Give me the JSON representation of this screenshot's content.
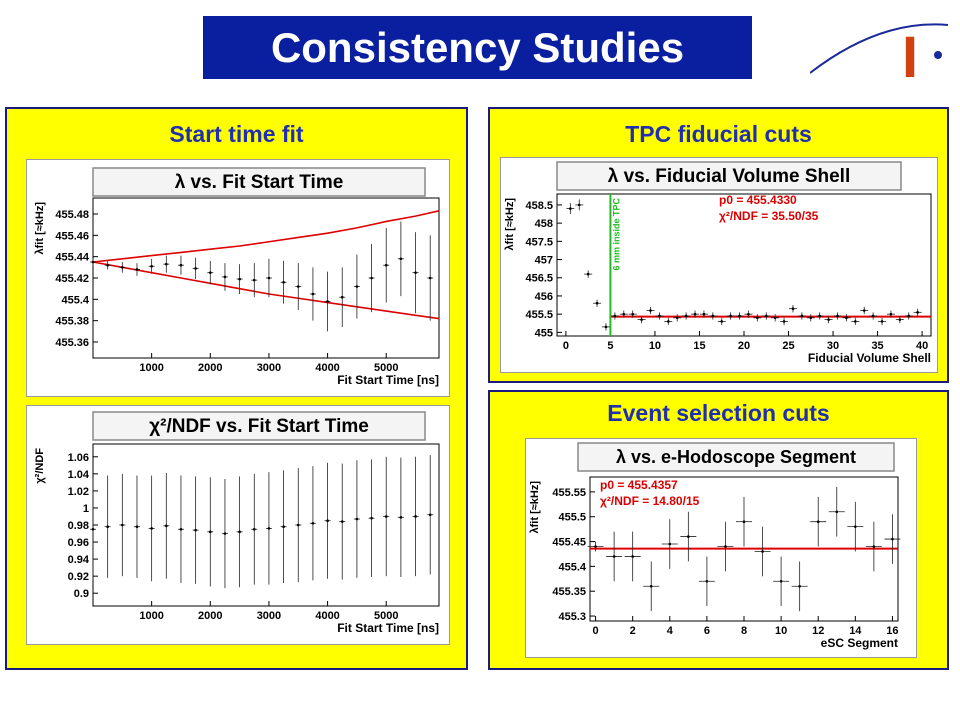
{
  "page": {
    "title": "Consistency Studies",
    "logo_letter": "I",
    "panels": {
      "start_time": "Start time fit",
      "tpc": "TPC fiducial cuts",
      "event": "Event selection cuts"
    }
  },
  "colors": {
    "title_bg": "#0a1fa0",
    "panel_bg": "#ffff00",
    "panel_title": "#1f2fb0",
    "fit_line": "#dd0000",
    "marker_line": "#22bb22"
  },
  "chart_data": [
    {
      "id": "lambda_vs_start",
      "type": "scatter",
      "title": "λ vs. Fit Start Time",
      "xlabel": "Fit Start Time [ns]",
      "ylabel": "λfit [≈kHz]",
      "xlim": [
        0,
        5900
      ],
      "ylim": [
        455.345,
        455.495
      ],
      "xticks": [
        1000,
        2000,
        3000,
        4000,
        5000
      ],
      "yticks": [
        455.36,
        455.38,
        455.4,
        455.42,
        455.44,
        455.46,
        455.48
      ],
      "ytick_labels": [
        "455.36",
        "455.38",
        "455.4",
        "455.42",
        "455.44",
        "455.46",
        "455.48"
      ],
      "series": [
        {
          "x": [
            0,
            250,
            500,
            750,
            1000,
            1250,
            1500,
            1750,
            2000,
            2250,
            2500,
            2750,
            3000,
            3250,
            3500,
            3750,
            4000,
            4250,
            4500,
            4750,
            5000,
            5250,
            5500,
            5750
          ],
          "y": [
            455.435,
            455.432,
            455.43,
            455.428,
            455.431,
            455.433,
            455.432,
            455.429,
            455.425,
            455.421,
            455.419,
            455.418,
            455.42,
            455.416,
            455.412,
            455.405,
            455.398,
            455.402,
            455.412,
            455.42,
            455.432,
            455.438,
            455.425,
            455.42
          ],
          "err_lo": [
            0.003,
            0.004,
            0.005,
            0.006,
            0.007,
            0.008,
            0.009,
            0.01,
            0.011,
            0.013,
            0.014,
            0.016,
            0.018,
            0.02,
            0.022,
            0.025,
            0.028,
            0.028,
            0.03,
            0.032,
            0.035,
            0.035,
            0.038,
            0.04
          ]
        }
      ],
      "envelope": {
        "x": [
          0,
          500,
          1000,
          1500,
          2000,
          2500,
          3000,
          3500,
          4000,
          4500,
          5000,
          5500,
          5900
        ],
        "upper": [
          455.435,
          455.438,
          455.441,
          455.444,
          455.447,
          455.45,
          455.454,
          455.458,
          455.462,
          455.467,
          455.473,
          455.478,
          455.483
        ],
        "lower": [
          455.435,
          455.43,
          455.425,
          455.42,
          455.415,
          455.41,
          455.405,
          455.401,
          455.397,
          455.393,
          455.389,
          455.385,
          455.382
        ]
      }
    },
    {
      "id": "chi2_vs_start",
      "type": "scatter",
      "title": "χ²/NDF vs. Fit Start Time",
      "xlabel": "Fit Start Time [ns]",
      "ylabel": "χ²/NDF",
      "xlim": [
        0,
        5900
      ],
      "ylim": [
        0.885,
        1.075
      ],
      "xticks": [
        1000,
        2000,
        3000,
        4000,
        5000
      ],
      "yticks": [
        0.9,
        0.92,
        0.94,
        0.96,
        0.98,
        1.0,
        1.02,
        1.04,
        1.06
      ],
      "ytick_labels": [
        "0.9",
        "0.92",
        "0.94",
        "0.96",
        "0.98",
        "1",
        "1.02",
        "1.04",
        "1.06"
      ],
      "series": [
        {
          "x": [
            0,
            250,
            500,
            750,
            1000,
            1250,
            1500,
            1750,
            2000,
            2250,
            2500,
            2750,
            3000,
            3250,
            3500,
            3750,
            4000,
            4250,
            4500,
            4750,
            5000,
            5250,
            5500,
            5750
          ],
          "y": [
            0.975,
            0.978,
            0.98,
            0.978,
            0.976,
            0.979,
            0.975,
            0.974,
            0.972,
            0.97,
            0.972,
            0.975,
            0.976,
            0.978,
            0.98,
            0.982,
            0.985,
            0.984,
            0.987,
            0.988,
            0.99,
            0.989,
            0.99,
            0.992
          ],
          "err": [
            0.06,
            0.06,
            0.06,
            0.06,
            0.062,
            0.062,
            0.063,
            0.063,
            0.064,
            0.064,
            0.065,
            0.065,
            0.066,
            0.066,
            0.067,
            0.067,
            0.068,
            0.068,
            0.069,
            0.069,
            0.07,
            0.07,
            0.07,
            0.07
          ]
        }
      ]
    },
    {
      "id": "lambda_vs_shell",
      "type": "scatter",
      "title": "λ vs. Fiducial Volume Shell",
      "xlabel": "Fiducial Volume Shell",
      "ylabel": "λfit [≈kHz]",
      "xlim": [
        -1,
        41
      ],
      "ylim": [
        454.9,
        458.8
      ],
      "xticks": [
        0,
        5,
        10,
        15,
        20,
        25,
        30,
        35,
        40
      ],
      "yticks": [
        455,
        455.5,
        456,
        456.5,
        457,
        457.5,
        458,
        458.5
      ],
      "ytick_labels": [
        "455",
        "455.5",
        "456",
        "456.5",
        "457",
        "457.5",
        "458",
        "458.5"
      ],
      "fit_label": "p0 = 455.4330",
      "chi2_label": "χ²/NDF = 35.50/35",
      "marker_label": "6 mm inside TPC",
      "marker_x": 5,
      "fit_value": 455.433,
      "fit_from": 5,
      "series": [
        {
          "x": [
            0.5,
            1.5,
            2.5,
            3.5,
            4.5,
            5.5,
            6.5,
            7.5,
            8.5,
            9.5,
            10.5,
            11.5,
            12.5,
            13.5,
            14.5,
            15.5,
            16.5,
            17.5,
            18.5,
            19.5,
            20.5,
            21.5,
            22.5,
            23.5,
            24.5,
            25.5,
            26.5,
            27.5,
            28.5,
            29.5,
            30.5,
            31.5,
            32.5,
            33.5,
            34.5,
            35.5,
            36.5,
            37.5,
            38.5,
            39.5
          ],
          "y": [
            458.4,
            458.5,
            456.6,
            455.8,
            455.15,
            455.45,
            455.5,
            455.5,
            455.35,
            455.6,
            455.45,
            455.3,
            455.4,
            455.45,
            455.5,
            455.5,
            455.45,
            455.3,
            455.45,
            455.45,
            455.5,
            455.4,
            455.45,
            455.4,
            455.3,
            455.65,
            455.45,
            455.4,
            455.45,
            455.35,
            455.45,
            455.4,
            455.3,
            455.6,
            455.45,
            455.3,
            455.5,
            455.35,
            455.45,
            455.55
          ],
          "err": [
            0.15,
            0.15,
            0.1,
            0.1,
            0.1,
            0.1,
            0.1,
            0.1,
            0.1,
            0.1,
            0.1,
            0.1,
            0.1,
            0.1,
            0.1,
            0.1,
            0.1,
            0.1,
            0.1,
            0.1,
            0.1,
            0.1,
            0.1,
            0.1,
            0.1,
            0.1,
            0.1,
            0.1,
            0.1,
            0.1,
            0.1,
            0.1,
            0.1,
            0.1,
            0.1,
            0.1,
            0.1,
            0.1,
            0.1,
            0.1
          ]
        }
      ]
    },
    {
      "id": "lambda_vs_segment",
      "type": "scatter",
      "title": "λ vs. e-Hodoscope Segment",
      "xlabel": "eSC Segment",
      "ylabel": "λfit [≈kHz]",
      "xlim": [
        -0.3,
        16.3
      ],
      "ylim": [
        455.29,
        455.58
      ],
      "xticks": [
        0,
        2,
        4,
        6,
        8,
        10,
        12,
        14,
        16
      ],
      "yticks": [
        455.3,
        455.35,
        455.4,
        455.45,
        455.5,
        455.55
      ],
      "ytick_labels": [
        "455.3",
        "455.35",
        "455.4",
        "455.45",
        "455.5",
        "455.55"
      ],
      "fit_label": "p0 = 455.4357",
      "chi2_label": "χ²/NDF = 14.80/15",
      "fit_value": 455.4357,
      "fit_from": -0.3,
      "series": [
        {
          "x": [
            0,
            1,
            2,
            3,
            4,
            5,
            6,
            7,
            8,
            9,
            10,
            11,
            12,
            13,
            14,
            15,
            16
          ],
          "y": [
            455.44,
            455.42,
            455.42,
            455.36,
            455.445,
            455.46,
            455.37,
            455.44,
            455.49,
            455.43,
            455.37,
            455.36,
            455.49,
            455.51,
            455.48,
            455.44,
            455.455
          ],
          "err": [
            0.01,
            0.05,
            0.05,
            0.05,
            0.05,
            0.05,
            0.05,
            0.05,
            0.05,
            0.05,
            0.05,
            0.05,
            0.05,
            0.05,
            0.05,
            0.05,
            0.05
          ]
        }
      ]
    }
  ]
}
